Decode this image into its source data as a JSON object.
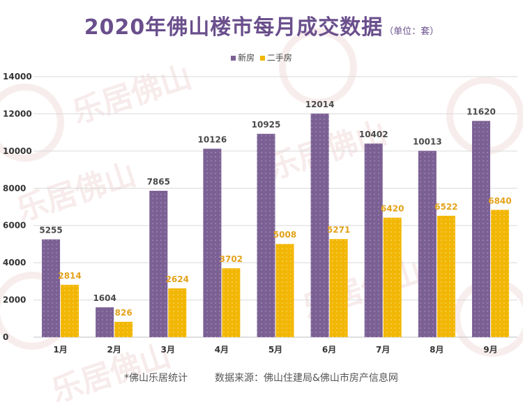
{
  "title": "2020年佛山楼市每月成交数据",
  "subtitle": "（单位：套）",
  "watermark": "乐居佛山",
  "footer": {
    "source_note": "*佛山乐居统计",
    "data_source": "数据来源：佛山住建局&佛山市房产信息网"
  },
  "colors": {
    "new_house": "#7b6094",
    "second_hand": "#f2b705",
    "title": "#6a4f8c",
    "label_new": "#4a4a4a",
    "label_second": "#e3a21a",
    "grid": "#d9d9d9"
  },
  "chart_data": {
    "type": "bar",
    "categories": [
      "1月",
      "2月",
      "3月",
      "4月",
      "5月",
      "6月",
      "7月",
      "8月",
      "9月"
    ],
    "series": [
      {
        "name": "新房",
        "values": [
          5255,
          1604,
          7865,
          10126,
          10925,
          12014,
          10402,
          10013,
          11620
        ]
      },
      {
        "name": "二手房",
        "values": [
          2814,
          826,
          2624,
          3702,
          5008,
          5271,
          6420,
          6522,
          6840
        ]
      }
    ],
    "ylim": [
      0,
      14000
    ],
    "yticks": [
      "0",
      "2000",
      "4000",
      "6000",
      "8000",
      "10000",
      "12000",
      "14000"
    ],
    "grid": true,
    "legend_position": "top-center"
  }
}
